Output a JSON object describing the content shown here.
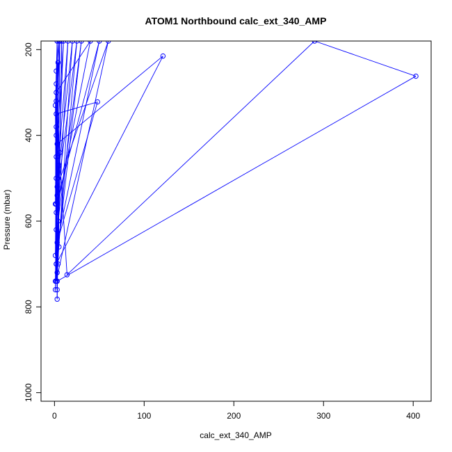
{
  "chart_data": {
    "type": "line",
    "title": "ATOM1 Northbound calc_ext_340_AMP",
    "xlabel": "calc_ext_340_AMP",
    "ylabel": "Pressure (mbar)",
    "xlim": [
      -15,
      420
    ],
    "ylim": [
      1020,
      180
    ],
    "y_reversed": true,
    "x_ticks": [
      0,
      100,
      200,
      300,
      400
    ],
    "y_ticks": [
      200,
      400,
      600,
      800,
      1000
    ],
    "grid": false,
    "legend": "none",
    "colors": {
      "series": "#0000ff",
      "axis": "#000000"
    },
    "series": [
      {
        "style": "lines+open-circles",
        "points": [
          {
            "x": 3,
            "y": 180
          },
          {
            "x": 1,
            "y": 330
          },
          {
            "x": 2,
            "y": 700
          },
          {
            "x": 15,
            "y": 180
          },
          {
            "x": 1,
            "y": 560
          },
          {
            "x": 2,
            "y": 250
          },
          {
            "x": 5,
            "y": 180
          },
          {
            "x": 2,
            "y": 620
          },
          {
            "x": 1,
            "y": 740
          },
          {
            "x": 25,
            "y": 180
          },
          {
            "x": 3,
            "y": 540
          },
          {
            "x": 2,
            "y": 300
          },
          {
            "x": 40,
            "y": 180
          },
          {
            "x": 2,
            "y": 580
          },
          {
            "x": 3,
            "y": 760
          },
          {
            "x": 6,
            "y": 180
          },
          {
            "x": 2,
            "y": 400
          },
          {
            "x": 1,
            "y": 680
          },
          {
            "x": 10,
            "y": 180
          },
          {
            "x": 2,
            "y": 450
          },
          {
            "x": 3,
            "y": 720
          },
          {
            "x": 20,
            "y": 180
          },
          {
            "x": 4,
            "y": 500
          },
          {
            "x": 2,
            "y": 350
          },
          {
            "x": 48,
            "y": 322
          },
          {
            "x": 3,
            "y": 650
          },
          {
            "x": 50,
            "y": 180
          },
          {
            "x": 2,
            "y": 560
          },
          {
            "x": 4,
            "y": 230
          },
          {
            "x": 3,
            "y": 420
          },
          {
            "x": 121,
            "y": 215
          },
          {
            "x": 2,
            "y": 700
          },
          {
            "x": 30,
            "y": 180
          },
          {
            "x": 4,
            "y": 600
          },
          {
            "x": 2,
            "y": 280
          },
          {
            "x": 5,
            "y": 470
          },
          {
            "x": 2,
            "y": 740
          },
          {
            "x": 60,
            "y": 180
          },
          {
            "x": 3,
            "y": 520
          },
          {
            "x": 2,
            "y": 320
          },
          {
            "x": 14,
            "y": 725
          },
          {
            "x": 290,
            "y": 180
          },
          {
            "x": 403,
            "y": 262
          },
          {
            "x": 3,
            "y": 740
          },
          {
            "x": 2,
            "y": 380
          },
          {
            "x": 3,
            "y": 782
          },
          {
            "x": 8,
            "y": 180
          },
          {
            "x": 4,
            "y": 700
          },
          {
            "x": 6,
            "y": 440
          },
          {
            "x": 1,
            "y": 760
          },
          {
            "x": 3,
            "y": 180
          },
          {
            "x": 5,
            "y": 660
          },
          {
            "x": 2,
            "y": 500
          }
        ]
      }
    ]
  }
}
